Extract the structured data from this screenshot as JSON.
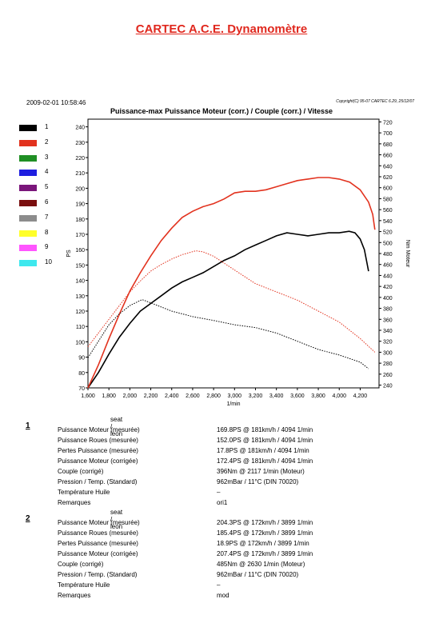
{
  "header": {
    "title": "CARTEC A.C.E. Dynamomètre",
    "date": "2009-02-01 10:58:46",
    "copyright": "Copyright(C) 95-07 CARTEC 6.29, 25/12/07",
    "chart_title": "Puissance-max Puissance Moteur (corr.) / Couple (corr.) / Vitesse"
  },
  "legend": [
    {
      "label": "1",
      "color": "#000000"
    },
    {
      "label": "2",
      "color": "#e2321e"
    },
    {
      "label": "3",
      "color": "#1f8f24"
    },
    {
      "label": "4",
      "color": "#1e1ee0"
    },
    {
      "label": "5",
      "color": "#7a157a"
    },
    {
      "label": "6",
      "color": "#7a0f0f"
    },
    {
      "label": "7",
      "color": "#8c8c8c"
    },
    {
      "label": "8",
      "color": "#ffff2a"
    },
    {
      "label": "9",
      "color": "#ff55ff"
    },
    {
      "label": "10",
      "color": "#3ee8ee"
    }
  ],
  "chart_data": {
    "type": "line",
    "xlabel": "1/min",
    "ylabel_left": "PS",
    "ylabel_right": "Nm Moteur",
    "x_ticks": [
      "1,600",
      "1,800",
      "2,000",
      "2,200",
      "2,400",
      "2,600",
      "2,800",
      "3,000",
      "3,200",
      "3,400",
      "3,600",
      "3,800",
      "4,000",
      "4,200"
    ],
    "y_left_ticks": [
      "70",
      "80",
      "90",
      "100",
      "110",
      "120",
      "130",
      "140",
      "150",
      "160",
      "170",
      "180",
      "190",
      "200",
      "210",
      "220",
      "230",
      "240"
    ],
    "y_right_ticks": [
      "240",
      "260",
      "280",
      "300",
      "320",
      "340",
      "360",
      "380",
      "400",
      "420",
      "440",
      "460",
      "480",
      "500",
      "520",
      "540",
      "560",
      "580",
      "600",
      "620",
      "640",
      "660",
      "680",
      "700",
      "720"
    ],
    "xlim": [
      1600,
      4380
    ],
    "ylim_left": [
      70,
      245
    ],
    "ylim_right": [
      235,
      725
    ],
    "series": [
      {
        "name": "1",
        "quantity": "Puissance Moteur (corr.)",
        "axis": "left",
        "color": "#000000",
        "style": "solid",
        "x": [
          1600,
          1700,
          1800,
          1900,
          2000,
          2100,
          2200,
          2300,
          2400,
          2500,
          2600,
          2700,
          2800,
          2900,
          3000,
          3100,
          3200,
          3300,
          3400,
          3500,
          3600,
          3700,
          3800,
          3900,
          4000,
          4094,
          4150,
          4200,
          4240,
          4260,
          4280
        ],
        "y": [
          70,
          80,
          92,
          103,
          112,
          120,
          125,
          130,
          135,
          139,
          142,
          145,
          149,
          153,
          156,
          160,
          163,
          166,
          169,
          171,
          170,
          169,
          170,
          171,
          171,
          172,
          171,
          167,
          160,
          153,
          146
        ]
      },
      {
        "name": "2",
        "quantity": "Puissance Moteur (corr.)",
        "axis": "left",
        "color": "#e2321e",
        "style": "solid",
        "x": [
          1600,
          1700,
          1800,
          1900,
          2000,
          2100,
          2200,
          2300,
          2400,
          2500,
          2600,
          2700,
          2800,
          2900,
          3000,
          3100,
          3200,
          3300,
          3400,
          3500,
          3600,
          3700,
          3800,
          3899,
          4000,
          4100,
          4200,
          4280,
          4320,
          4340
        ],
        "y": [
          70,
          85,
          102,
          118,
          133,
          145,
          156,
          166,
          174,
          181,
          185,
          188,
          190,
          193,
          197,
          198,
          198,
          199,
          201,
          203,
          205,
          206,
          207,
          207,
          206,
          204,
          199,
          191,
          183,
          173
        ]
      },
      {
        "name": "1",
        "quantity": "Couple (corr.)",
        "axis": "right",
        "color": "#000000",
        "style": "dotted",
        "x": [
          1600,
          1700,
          1800,
          1900,
          2000,
          2117,
          2200,
          2400,
          2600,
          2800,
          3000,
          3200,
          3400,
          3600,
          3800,
          4000,
          4200,
          4280
        ],
        "y": [
          290,
          320,
          350,
          370,
          385,
          396,
          390,
          375,
          365,
          358,
          350,
          345,
          335,
          320,
          305,
          295,
          282,
          270
        ]
      },
      {
        "name": "2",
        "quantity": "Couple (corr.)",
        "axis": "right",
        "color": "#e2321e",
        "style": "dotted",
        "x": [
          1600,
          1700,
          1800,
          1900,
          2000,
          2100,
          2200,
          2300,
          2400,
          2500,
          2630,
          2700,
          2800,
          3000,
          3200,
          3400,
          3600,
          3800,
          4000,
          4200,
          4340
        ],
        "y": [
          310,
          335,
          360,
          385,
          410,
          430,
          448,
          460,
          470,
          478,
          485,
          483,
          475,
          450,
          425,
          410,
          395,
          375,
          355,
          325,
          300
        ]
      }
    ]
  },
  "runs": [
    {
      "number": "1",
      "car": "seat / leon",
      "rows": [
        {
          "label": "Puissance Moteur (mesurée)",
          "value": "169.8PS @ 181km/h / 4094 1/min"
        },
        {
          "label": "Puissance Roues (mesurée)",
          "value": "152.0PS @ 181km/h / 4094 1/min"
        },
        {
          "label": "Pertes Puissance (mesurée)",
          "value": "17.8PS @ 181km/h / 4094 1/min"
        },
        {
          "label": "Puissance Moteur (corrigée)",
          "value": "172.4PS @ 181km/h / 4094 1/min"
        },
        {
          "label": "Couple (corrigé)",
          "value": "396Nm @ 2117 1/min (Moteur)"
        },
        {
          "label": "Pression / Temp. (Standard)",
          "value": "962mBar / 11°C  (DIN 70020)"
        },
        {
          "label": "Température Huile",
          "value": "–"
        },
        {
          "label": "Remarques",
          "value": "ori1"
        }
      ]
    },
    {
      "number": "2",
      "car": "seat / leon",
      "rows": [
        {
          "label": "Puissance Moteur (mesurée)",
          "value": "204.3PS @ 172km/h / 3899 1/min"
        },
        {
          "label": "Puissance Roues (mesurée)",
          "value": "185.4PS @ 172km/h / 3899 1/min"
        },
        {
          "label": "Pertes Puissance (mesurée)",
          "value": "18.9PS @ 172km/h / 3899 1/min"
        },
        {
          "label": "Puissance Moteur (corrigée)",
          "value": "207.4PS @ 172km/h / 3899 1/min"
        },
        {
          "label": "Couple (corrigé)",
          "value": "485Nm @ 2630 1/min (Moteur)"
        },
        {
          "label": "Pression / Temp. (Standard)",
          "value": "962mBar / 11°C  (DIN 70020)"
        },
        {
          "label": "Température Huile",
          "value": "–"
        },
        {
          "label": "Remarques",
          "value": "mod"
        }
      ]
    }
  ]
}
